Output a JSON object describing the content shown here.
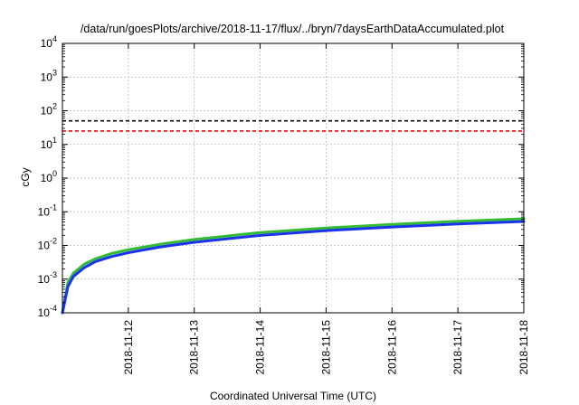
{
  "chart_data": {
    "type": "line",
    "title": "/data/run/goesPlots/archive/2018-11-17/flux/../bryn/7daysEarthDataAccumulated.plot",
    "xlabel": "Coordinated Universal Time (UTC)",
    "ylabel": "cGy",
    "y_scale": "log",
    "ylim": [
      0.0001,
      10000
    ],
    "xlim": [
      "2018-11-11",
      "2018-11-18"
    ],
    "x_tick_labels": [
      "2018-11-12",
      "2018-11-13",
      "2018-11-14",
      "2018-11-15",
      "2018-11-16",
      "2018-11-17",
      "2018-11-18"
    ],
    "x_tick_values": [
      1,
      2,
      3,
      4,
      5,
      6,
      7
    ],
    "y_tick_labels": [
      {
        "base": "10",
        "exp": "-4"
      },
      {
        "base": "10",
        "exp": "-3"
      },
      {
        "base": "10",
        "exp": "-2"
      },
      {
        "base": "10",
        "exp": "-1"
      },
      {
        "base": "10",
        "exp": "0"
      },
      {
        "base": "10",
        "exp": "1"
      },
      {
        "base": "10",
        "exp": "2"
      },
      {
        "base": "10",
        "exp": "3"
      },
      {
        "base": "10",
        "exp": "4"
      }
    ],
    "y_tick_values": [
      -4,
      -3,
      -2,
      -1,
      0,
      1,
      2,
      3,
      4
    ],
    "grid": true,
    "reference_lines": [
      {
        "y": 50,
        "color": "#000000",
        "style": "dashed"
      },
      {
        "y": 25,
        "color": "#ff0000",
        "style": "dashed"
      }
    ],
    "series": [
      {
        "color": "#33bb33",
        "x": [
          "2018-11-11 00:00",
          "2018-11-11 02:00",
          "2018-11-11 04:00",
          "2018-11-11 08:00",
          "2018-11-11 12:00",
          "2018-11-11 18:00",
          "2018-11-12 00:00",
          "2018-11-12 12:00",
          "2018-11-13 00:00",
          "2018-11-14 00:00",
          "2018-11-15 00:00",
          "2018-11-16 00:00",
          "2018-11-17 00:00",
          "2018-11-18 00:00"
        ],
        "values": [
          0.0001,
          0.0008,
          0.0015,
          0.0028,
          0.004,
          0.0058,
          0.0075,
          0.011,
          0.015,
          0.024,
          0.033,
          0.042,
          0.052,
          0.062
        ]
      },
      {
        "color": "#1a33ee",
        "x": [
          "2018-11-11 00:00",
          "2018-11-11 02:00",
          "2018-11-11 04:00",
          "2018-11-11 08:00",
          "2018-11-11 12:00",
          "2018-11-11 18:00",
          "2018-11-12 00:00",
          "2018-11-12 12:00",
          "2018-11-13 00:00",
          "2018-11-14 00:00",
          "2018-11-15 00:00",
          "2018-11-16 00:00",
          "2018-11-17 00:00",
          "2018-11-18 00:00"
        ],
        "values": [
          0.0001,
          0.0006,
          0.0012,
          0.0022,
          0.0033,
          0.0047,
          0.0061,
          0.0091,
          0.0124,
          0.0198,
          0.0275,
          0.0352,
          0.0435,
          0.0515
        ]
      }
    ]
  }
}
